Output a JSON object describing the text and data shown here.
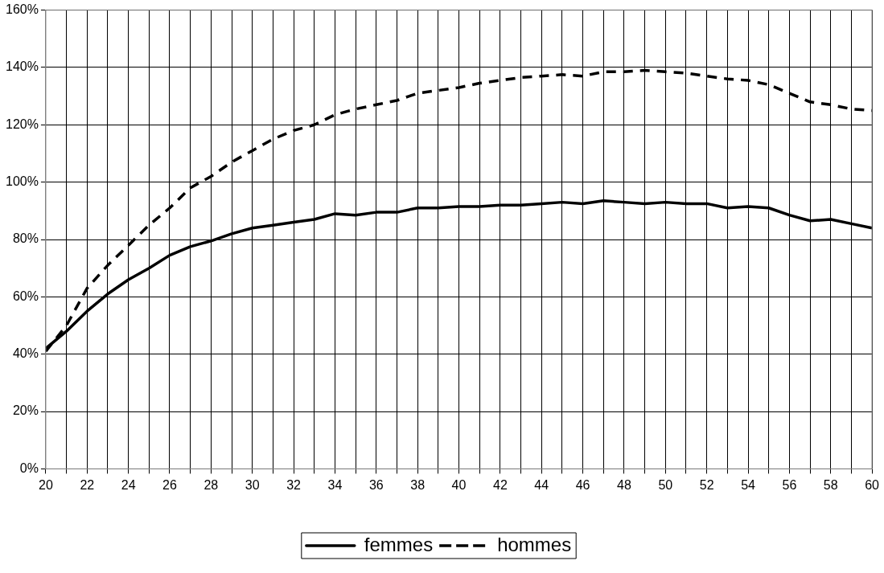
{
  "chart_data": {
    "type": "line",
    "x": [
      20,
      21,
      22,
      23,
      24,
      25,
      26,
      27,
      28,
      29,
      30,
      31,
      32,
      33,
      34,
      35,
      36,
      37,
      38,
      39,
      40,
      41,
      42,
      43,
      44,
      45,
      46,
      47,
      48,
      49,
      50,
      51,
      52,
      53,
      54,
      55,
      56,
      57,
      58,
      59,
      60
    ],
    "series": [
      {
        "name": "femmes",
        "color": "#000000",
        "line_style": "solid",
        "values": [
          42,
          48,
          55,
          61,
          66,
          70,
          74.5,
          77.5,
          79.5,
          82,
          84,
          85,
          86,
          87,
          89,
          88.5,
          89.5,
          89.5,
          91,
          91,
          91.5,
          91.5,
          92,
          92,
          92.5,
          93,
          92.5,
          93.5,
          93,
          92.5,
          93,
          92.5,
          92.5,
          91,
          91.5,
          91,
          88.5,
          86.5,
          87,
          85.5,
          84
        ]
      },
      {
        "name": "hommes",
        "color": "#000000",
        "line_style": "dashed",
        "values": [
          41,
          50,
          63,
          71,
          78,
          85,
          91,
          98,
          102,
          107,
          111,
          115,
          118,
          120,
          123.5,
          125.5,
          127,
          128.5,
          131,
          132,
          133,
          134.5,
          135.5,
          136.5,
          137,
          137.5,
          137,
          138.5,
          138.5,
          139,
          138.5,
          138,
          137,
          136,
          135.5,
          134,
          131,
          128,
          127,
          125.5,
          125
        ]
      }
    ],
    "xlim": [
      20,
      60
    ],
    "xticks": [
      20,
      {
        "value": 21,
        "label": null
      },
      22,
      {
        "value": 23,
        "label": null
      },
      24,
      {
        "value": 25,
        "label": null
      },
      26,
      {
        "value": 27,
        "label": null
      },
      28,
      {
        "value": 29,
        "label": null
      },
      30,
      {
        "value": 31,
        "label": null
      },
      32,
      {
        "value": 33,
        "label": null
      },
      34,
      {
        "value": 35,
        "label": null
      },
      36,
      {
        "value": 37,
        "label": null
      },
      38,
      {
        "value": 39,
        "label": null
      },
      40,
      {
        "value": 41,
        "label": null
      },
      42,
      {
        "value": 43,
        "label": null
      },
      44,
      {
        "value": 45,
        "label": null
      },
      46,
      {
        "value": 47,
        "label": null
      },
      48,
      {
        "value": 49,
        "label": null
      },
      50,
      {
        "value": 51,
        "label": null
      },
      52,
      {
        "value": 53,
        "label": null
      },
      54,
      {
        "value": 55,
        "label": null
      },
      56,
      {
        "value": 57,
        "label": null
      },
      58,
      {
        "value": 59,
        "label": null
      },
      60
    ],
    "ylim": [
      0,
      160
    ],
    "yticks": [
      {
        "value": 0,
        "label": "0%"
      },
      {
        "value": 20,
        "label": "20%"
      },
      {
        "value": 40,
        "label": "40%"
      },
      {
        "value": 60,
        "label": "60%"
      },
      {
        "value": 80,
        "label": "80%"
      },
      {
        "value": 100,
        "label": "100%"
      },
      {
        "value": 120,
        "label": "120%"
      },
      {
        "value": 140,
        "label": "140%"
      },
      {
        "value": 160,
        "label": "160%"
      }
    ],
    "grid": true,
    "legend": "bottom",
    "marker": "none"
  }
}
